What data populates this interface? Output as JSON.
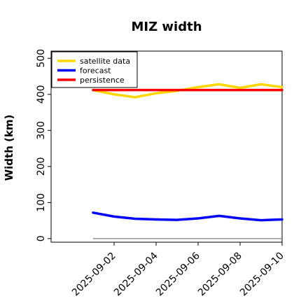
{
  "chart_data": {
    "type": "line",
    "title": "MIZ width",
    "xlabel": "",
    "ylabel": "Width (km)",
    "x": [
      "2025-09-01",
      "2025-09-02",
      "2025-09-03",
      "2025-09-04",
      "2025-09-05",
      "2025-09-06",
      "2025-09-07",
      "2025-09-08",
      "2025-09-09",
      "2025-09-10"
    ],
    "xlim": [
      "2025-08-30",
      "2025-09-10"
    ],
    "ylim": [
      -10,
      520
    ],
    "x_ticks": [
      "2025-09-02",
      "2025-09-04",
      "2025-09-06",
      "2025-09-08",
      "2025-09-10"
    ],
    "x_tick_colors": [
      "#228b22",
      "#000000",
      "#000000",
      "#000000",
      "#000000"
    ],
    "y_ticks": [
      0,
      100,
      200,
      300,
      400,
      500
    ],
    "legend_position": "upper-left",
    "grid": false,
    "series": [
      {
        "name": "satellite data",
        "color": "#ffd700",
        "values": [
          412,
          400,
          392,
          403,
          410,
          420,
          428,
          418,
          428,
          420
        ]
      },
      {
        "name": "forecast",
        "color": "#0000ff",
        "values": [
          72,
          61,
          55,
          53,
          52,
          56,
          63,
          56,
          51,
          53
        ]
      },
      {
        "name": "persistence",
        "color": "#ff0000",
        "values": [
          412,
          412,
          412,
          412,
          412,
          412,
          412,
          412,
          412,
          412
        ]
      }
    ],
    "reference_line": {
      "value": 0,
      "color": "#808080"
    }
  }
}
